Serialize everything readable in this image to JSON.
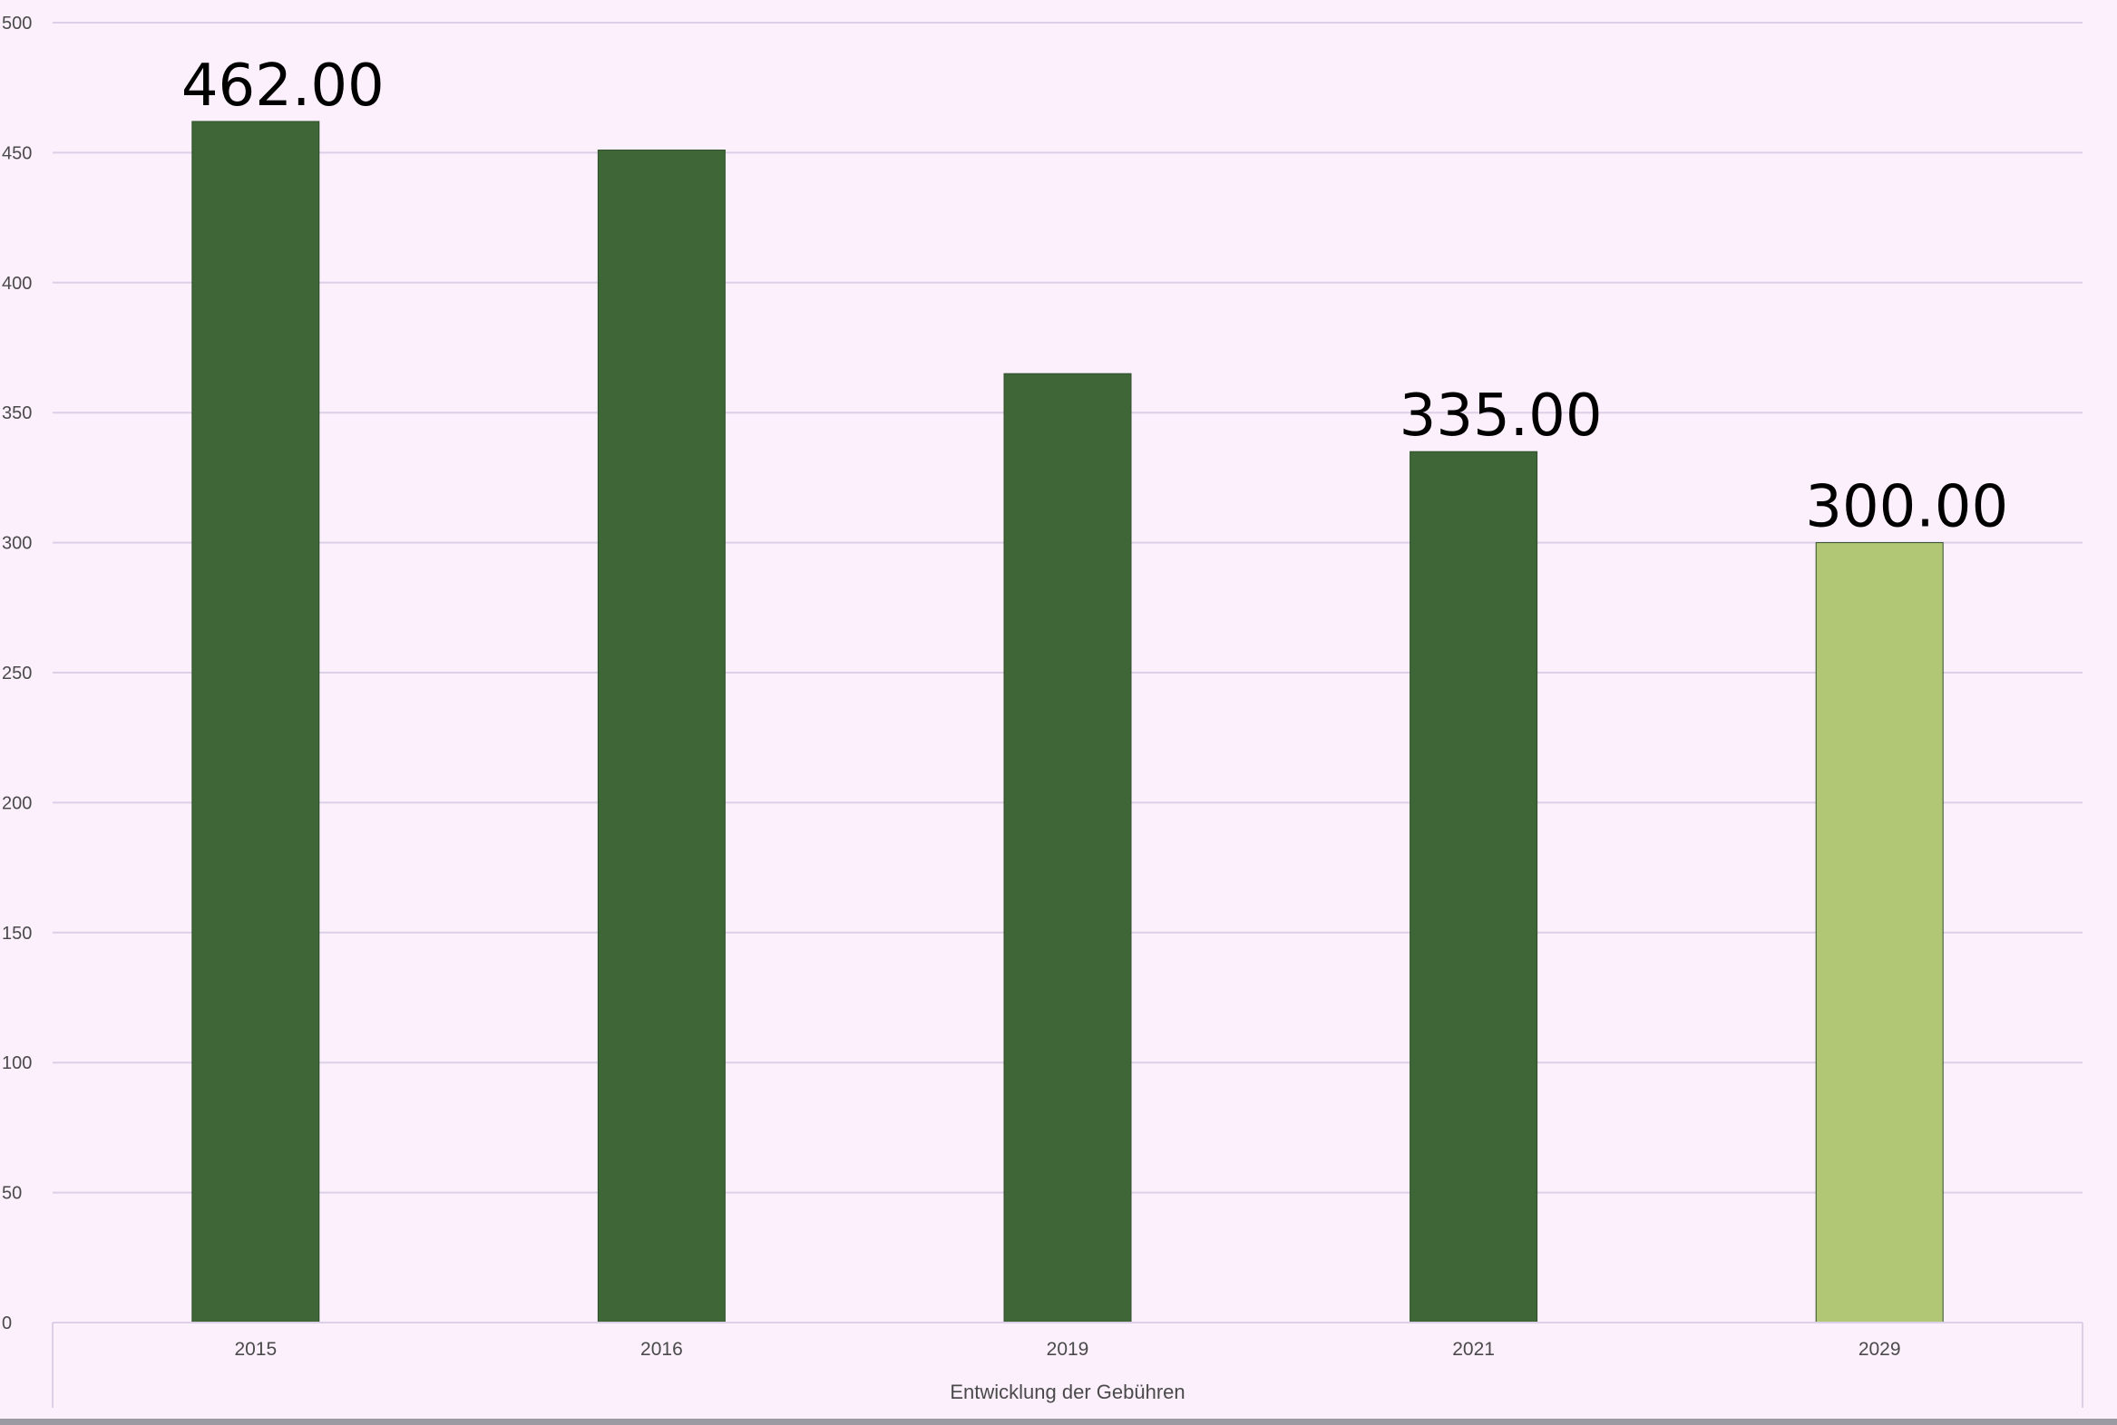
{
  "chart_data": {
    "type": "bar",
    "categories": [
      "2015",
      "2016",
      "2019",
      "2021",
      "2029"
    ],
    "values": [
      462,
      451,
      365,
      335,
      300
    ],
    "data_labels": [
      "462.00",
      "",
      "",
      "335.00",
      "300.00"
    ],
    "bar_colors": [
      "#3f6637",
      "#3f6637",
      "#3f6637",
      "#3f6637",
      "#b2c776"
    ],
    "xlabel": "Entwicklung der Gebühren",
    "ylabel": "",
    "title": "",
    "ylim": [
      0,
      500
    ],
    "yticks": [
      0,
      50,
      100,
      150,
      200,
      250,
      300,
      350,
      400,
      450,
      500
    ],
    "grid": true,
    "legend": "none"
  },
  "colors": {
    "background": "#fcf0fc",
    "gridline": "#dccfe8",
    "bar_actual": "#3f6637",
    "bar_target": "#b2c776"
  }
}
